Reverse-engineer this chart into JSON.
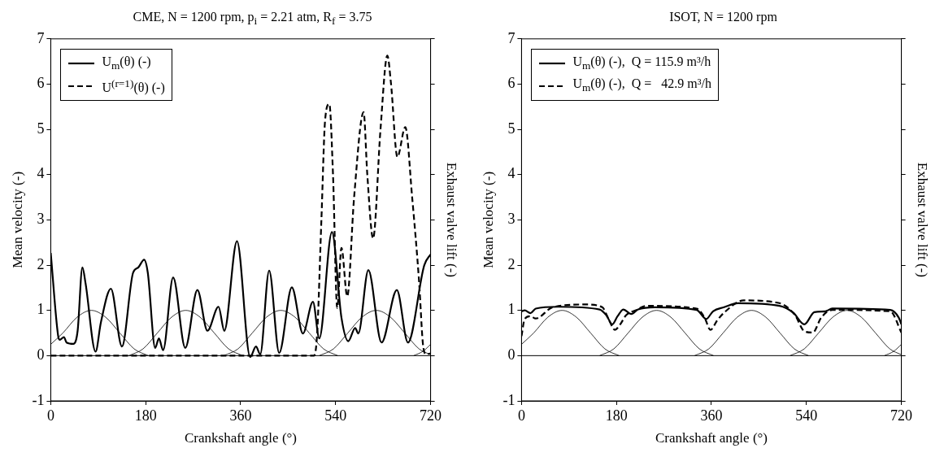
{
  "chart_data": [
    {
      "type": "line",
      "title": "CME, N = 1200 rpm, p$_{i}$ = 2.21 atm, R$_{f}$ = 3.75",
      "xlabel": "Crankshaft angle (°)",
      "ylabel": "Mean velocity (-)",
      "y2label": "Exhaust valve lift (-)",
      "xlim": [
        0,
        720
      ],
      "xticks": [
        0,
        180,
        360,
        540,
        720
      ],
      "ylim": [
        -1,
        7
      ],
      "yticks": [
        -1,
        0,
        1,
        2,
        3,
        4,
        5,
        6,
        7
      ],
      "grid": false,
      "legend": "top left",
      "marker": "none",
      "ref_lines": [
        {
          "axis": "y",
          "value": 0,
          "color": "#000000"
        }
      ],
      "series": [
        {
          "name": "U$_{m}$(θ) (-)",
          "color": "#000000",
          "line_style": "solid",
          "x": [
            0,
            14,
            17,
            25,
            30,
            43,
            51,
            60,
            66,
            85,
            95,
            114,
            135,
            156,
            166,
            177,
            184,
            198,
            205,
            213,
            232,
            255,
            278,
            297,
            318,
            329,
            353,
            378,
            389,
            397,
            414,
            433,
            457,
            478,
            497,
            509,
            533,
            551,
            564,
            577,
            583,
            602,
            627,
            656,
            677,
            708,
            720
          ],
          "values": [
            2.27,
            0.44,
            0.35,
            0.41,
            0.29,
            0.26,
            0.55,
            1.95,
            1.6,
            0.09,
            0.73,
            1.48,
            0.2,
            1.83,
            1.95,
            2.12,
            1.83,
            0.17,
            0.38,
            0.12,
            1.73,
            0.17,
            1.45,
            0.55,
            1.08,
            0.55,
            2.53,
            -0.03,
            0.2,
            0.03,
            1.88,
            0.06,
            1.51,
            0.49,
            1.19,
            0.38,
            2.73,
            0.84,
            0.32,
            0.61,
            0.49,
            1.89,
            0.29,
            1.45,
            0.29,
            2.0,
            2.24
          ]
        },
        {
          "name": "U$^{(r=1)}$(θ) (-)",
          "color": "#000000",
          "line_style": "dashed",
          "x": [
            0,
            499,
            505,
            513,
            520,
            528,
            535,
            543,
            551,
            562,
            575,
            593,
            600,
            611,
            625,
            638,
            645,
            657,
            672,
            685,
            698,
            706,
            712,
            720
          ],
          "values": [
            0,
            0,
            0.5,
            3,
            5.2,
            5.56,
            4,
            1.05,
            2.38,
            1.31,
            3.5,
            5.38,
            4,
            2.59,
            5,
            6.63,
            6,
            4.39,
            5.05,
            3.5,
            1.66,
            0.2,
            0.03,
            0.05
          ]
        },
        {
          "color": "#000000",
          "line_style": "solid",
          "x": [
            0,
            23,
            50,
            77,
            104,
            131,
            158,
            185
          ],
          "values": [
            0.25,
            0.5,
            0.85,
            1,
            0.85,
            0.5,
            0.15,
            0
          ]
        },
        {
          "color": "#000000",
          "line_style": "solid",
          "x": [
            148,
            175,
            202,
            229,
            256,
            283,
            310,
            337,
            364
          ],
          "values": [
            0,
            0.15,
            0.5,
            0.85,
            1,
            0.85,
            0.5,
            0.15,
            0
          ]
        },
        {
          "color": "#000000",
          "line_style": "solid",
          "x": [
            328,
            355,
            382,
            409,
            436,
            463,
            490,
            517,
            544
          ],
          "values": [
            0,
            0.15,
            0.5,
            0.85,
            1,
            0.85,
            0.5,
            0.15,
            0
          ]
        },
        {
          "color": "#000000",
          "line_style": "solid",
          "x": [
            509,
            536,
            563,
            590,
            617,
            644,
            671,
            698,
            720
          ],
          "values": [
            0,
            0.15,
            0.5,
            0.85,
            1,
            0.85,
            0.5,
            0.15,
            0.02
          ]
        },
        {
          "color": "#000000",
          "line_style": "solid",
          "x": [
            688,
            706,
            720
          ],
          "values": [
            0,
            0.1,
            0.25
          ]
        }
      ]
    },
    {
      "type": "line",
      "title": "ISOT, N = 1200 rpm",
      "xlabel": "Crankshaft angle (°)",
      "ylabel": "Mean velocity (-)",
      "y2label": "Exhaust valve lift (-)",
      "xlim": [
        0,
        720
      ],
      "xticks": [
        0,
        180,
        360,
        540,
        720
      ],
      "ylim": [
        -1,
        7
      ],
      "yticks": [
        -1,
        0,
        1,
        2,
        3,
        4,
        5,
        6,
        7
      ],
      "grid": false,
      "legend": "top left",
      "marker": "none",
      "ref_lines": [
        {
          "axis": "y",
          "value": 0,
          "color": "#000000"
        }
      ],
      "series": [
        {
          "name": "U$_{m}$(θ) (-),  Q = 115.9 m³/h",
          "color": "#000000",
          "line_style": "solid",
          "x": [
            0,
            6,
            17,
            27,
            69,
            148,
            161,
            172,
            182,
            193,
            208,
            221,
            253,
            332,
            350,
            363,
            384,
            410,
            489,
            515,
            536,
            555,
            576,
            589,
            699,
            715,
            720
          ],
          "values": [
            0.98,
            1.0,
            0.94,
            1.04,
            1.08,
            1.02,
            0.89,
            0.69,
            0.87,
            1.02,
            0.92,
            1.02,
            1.07,
            1.01,
            0.81,
            0.98,
            1.07,
            1.16,
            1.1,
            0.95,
            0.69,
            0.96,
            0.98,
            1.04,
            1.01,
            0.84,
            0.69
          ]
        },
        {
          "name": "U$_{m}$(θ) (-),  Q =   42.9 m³/h",
          "color": "#000000",
          "line_style": "dashed",
          "x": [
            0,
            6,
            17,
            27,
            59,
            122,
            153,
            166,
            177,
            187,
            198,
            216,
            237,
            332,
            347,
            358,
            371,
            384,
            421,
            489,
            518,
            536,
            552,
            568,
            589,
            699,
            720
          ],
          "values": [
            0.43,
            0.81,
            0.87,
            0.82,
            1.07,
            1.13,
            1.07,
            0.78,
            0.57,
            0.69,
            0.89,
            1.0,
            1.1,
            1.04,
            0.84,
            0.57,
            0.78,
            0.95,
            1.22,
            1.16,
            0.9,
            0.54,
            0.51,
            0.84,
            1.01,
            0.98,
            0.51
          ]
        },
        {
          "color": "#000000",
          "line_style": "solid",
          "x": [
            0,
            23,
            50,
            77,
            104,
            131,
            158,
            185
          ],
          "values": [
            0.25,
            0.5,
            0.85,
            1,
            0.85,
            0.5,
            0.15,
            0
          ]
        },
        {
          "color": "#000000",
          "line_style": "solid",
          "x": [
            148,
            175,
            202,
            229,
            256,
            283,
            310,
            337,
            364
          ],
          "values": [
            0,
            0.15,
            0.5,
            0.85,
            1,
            0.85,
            0.5,
            0.15,
            0
          ]
        },
        {
          "color": "#000000",
          "line_style": "solid",
          "x": [
            328,
            355,
            382,
            409,
            436,
            463,
            490,
            517,
            544
          ],
          "values": [
            0,
            0.15,
            0.5,
            0.85,
            1,
            0.85,
            0.5,
            0.15,
            0
          ]
        },
        {
          "color": "#000000",
          "line_style": "solid",
          "x": [
            509,
            536,
            563,
            590,
            617,
            644,
            671,
            698,
            720
          ],
          "values": [
            0,
            0.15,
            0.5,
            0.85,
            1,
            0.85,
            0.5,
            0.15,
            0.02
          ]
        },
        {
          "color": "#000000",
          "line_style": "solid",
          "x": [
            688,
            706,
            720
          ],
          "values": [
            0,
            0.1,
            0.25
          ]
        }
      ]
    }
  ]
}
